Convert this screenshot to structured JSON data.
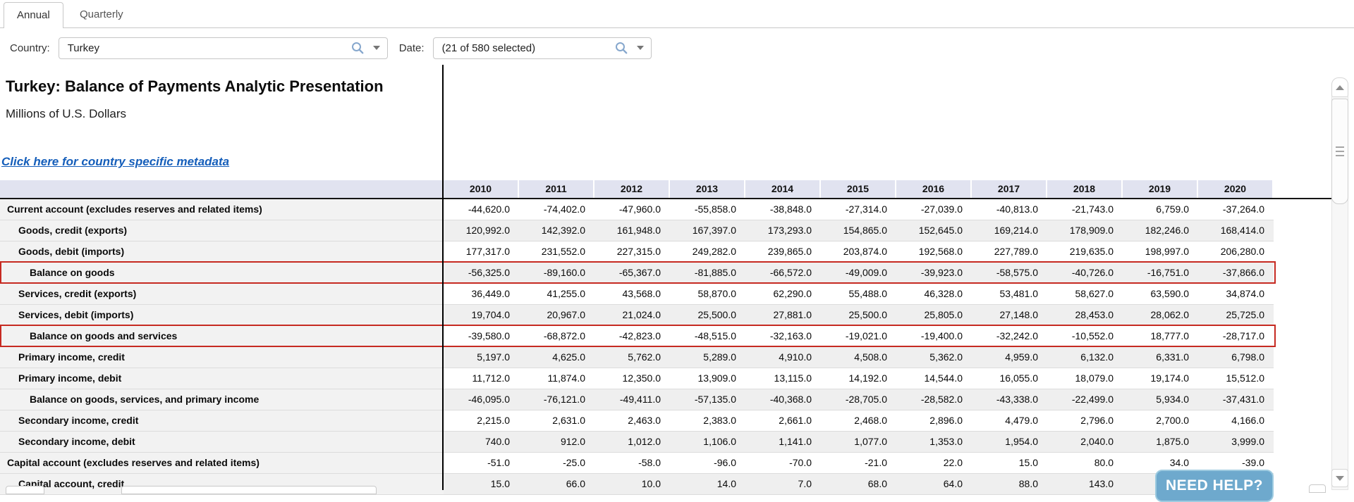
{
  "tabs": {
    "annual": "Annual",
    "quarterly": "Quarterly"
  },
  "filters": {
    "country_label": "Country:",
    "country_value": "Turkey",
    "date_label": "Date:",
    "date_value": "(21 of 580 selected)"
  },
  "report": {
    "title": "Turkey: Balance of Payments Analytic Presentation",
    "subtitle": "Millions of U.S. Dollars",
    "metadata_link": "Click here for country specific metadata"
  },
  "help_button_label": "NEED HELP?",
  "colors": {
    "header_bg": "#e1e3f0",
    "stripe": "#efefef",
    "stub_bg": "#f2f2f2",
    "highlight_border": "#c62a21",
    "link_blue": "#155eba",
    "help_button_bg": "#6ea9cd"
  },
  "table": {
    "years": [
      "2010",
      "2011",
      "2012",
      "2013",
      "2014",
      "2015",
      "2016",
      "2017",
      "2018",
      "2019",
      "2020"
    ],
    "rows": [
      {
        "label": "Current account (excludes reserves and related items)",
        "indent": 0,
        "highlight": false,
        "values": [
          "-44,620.0",
          "-74,402.0",
          "-47,960.0",
          "-55,858.0",
          "-38,848.0",
          "-27,314.0",
          "-27,039.0",
          "-40,813.0",
          "-21,743.0",
          "6,759.0",
          "-37,264.0"
        ]
      },
      {
        "label": "Goods, credit (exports)",
        "indent": 1,
        "highlight": false,
        "values": [
          "120,992.0",
          "142,392.0",
          "161,948.0",
          "167,397.0",
          "173,293.0",
          "154,865.0",
          "152,645.0",
          "169,214.0",
          "178,909.0",
          "182,246.0",
          "168,414.0"
        ]
      },
      {
        "label": "Goods, debit (imports)",
        "indent": 1,
        "highlight": false,
        "values": [
          "177,317.0",
          "231,552.0",
          "227,315.0",
          "249,282.0",
          "239,865.0",
          "203,874.0",
          "192,568.0",
          "227,789.0",
          "219,635.0",
          "198,997.0",
          "206,280.0"
        ]
      },
      {
        "label": "Balance on goods",
        "indent": 2,
        "highlight": true,
        "values": [
          "-56,325.0",
          "-89,160.0",
          "-65,367.0",
          "-81,885.0",
          "-66,572.0",
          "-49,009.0",
          "-39,923.0",
          "-58,575.0",
          "-40,726.0",
          "-16,751.0",
          "-37,866.0"
        ]
      },
      {
        "label": "Services, credit (exports)",
        "indent": 1,
        "highlight": false,
        "values": [
          "36,449.0",
          "41,255.0",
          "43,568.0",
          "58,870.0",
          "62,290.0",
          "55,488.0",
          "46,328.0",
          "53,481.0",
          "58,627.0",
          "63,590.0",
          "34,874.0"
        ]
      },
      {
        "label": "Services, debit (imports)",
        "indent": 1,
        "highlight": false,
        "values": [
          "19,704.0",
          "20,967.0",
          "21,024.0",
          "25,500.0",
          "27,881.0",
          "25,500.0",
          "25,805.0",
          "27,148.0",
          "28,453.0",
          "28,062.0",
          "25,725.0"
        ]
      },
      {
        "label": "Balance on goods and services",
        "indent": 2,
        "highlight": true,
        "values": [
          "-39,580.0",
          "-68,872.0",
          "-42,823.0",
          "-48,515.0",
          "-32,163.0",
          "-19,021.0",
          "-19,400.0",
          "-32,242.0",
          "-10,552.0",
          "18,777.0",
          "-28,717.0"
        ]
      },
      {
        "label": "Primary income, credit",
        "indent": 1,
        "highlight": false,
        "values": [
          "5,197.0",
          "4,625.0",
          "5,762.0",
          "5,289.0",
          "4,910.0",
          "4,508.0",
          "5,362.0",
          "4,959.0",
          "6,132.0",
          "6,331.0",
          "6,798.0"
        ]
      },
      {
        "label": "Primary income, debit",
        "indent": 1,
        "highlight": false,
        "values": [
          "11,712.0",
          "11,874.0",
          "12,350.0",
          "13,909.0",
          "13,115.0",
          "14,192.0",
          "14,544.0",
          "16,055.0",
          "18,079.0",
          "19,174.0",
          "15,512.0"
        ]
      },
      {
        "label": "Balance on goods, services, and primary income",
        "indent": 2,
        "highlight": false,
        "values": [
          "-46,095.0",
          "-76,121.0",
          "-49,411.0",
          "-57,135.0",
          "-40,368.0",
          "-28,705.0",
          "-28,582.0",
          "-43,338.0",
          "-22,499.0",
          "5,934.0",
          "-37,431.0"
        ]
      },
      {
        "label": "Secondary income, credit",
        "indent": 1,
        "highlight": false,
        "values": [
          "2,215.0",
          "2,631.0",
          "2,463.0",
          "2,383.0",
          "2,661.0",
          "2,468.0",
          "2,896.0",
          "4,479.0",
          "2,796.0",
          "2,700.0",
          "4,166.0"
        ]
      },
      {
        "label": "Secondary income, debit",
        "indent": 1,
        "highlight": false,
        "values": [
          "740.0",
          "912.0",
          "1,012.0",
          "1,106.0",
          "1,141.0",
          "1,077.0",
          "1,353.0",
          "1,954.0",
          "2,040.0",
          "1,875.0",
          "3,999.0"
        ]
      },
      {
        "label": "Capital account (excludes reserves and related items)",
        "indent": 0,
        "highlight": false,
        "values": [
          "-51.0",
          "-25.0",
          "-58.0",
          "-96.0",
          "-70.0",
          "-21.0",
          "22.0",
          "15.0",
          "80.0",
          "34.0",
          "-39.0"
        ]
      },
      {
        "label": "Capital account, credit",
        "indent": 1,
        "highlight": false,
        "values": [
          "15.0",
          "66.0",
          "10.0",
          "14.0",
          "7.0",
          "68.0",
          "64.0",
          "88.0",
          "143.0",
          "",
          ""
        ]
      }
    ]
  }
}
